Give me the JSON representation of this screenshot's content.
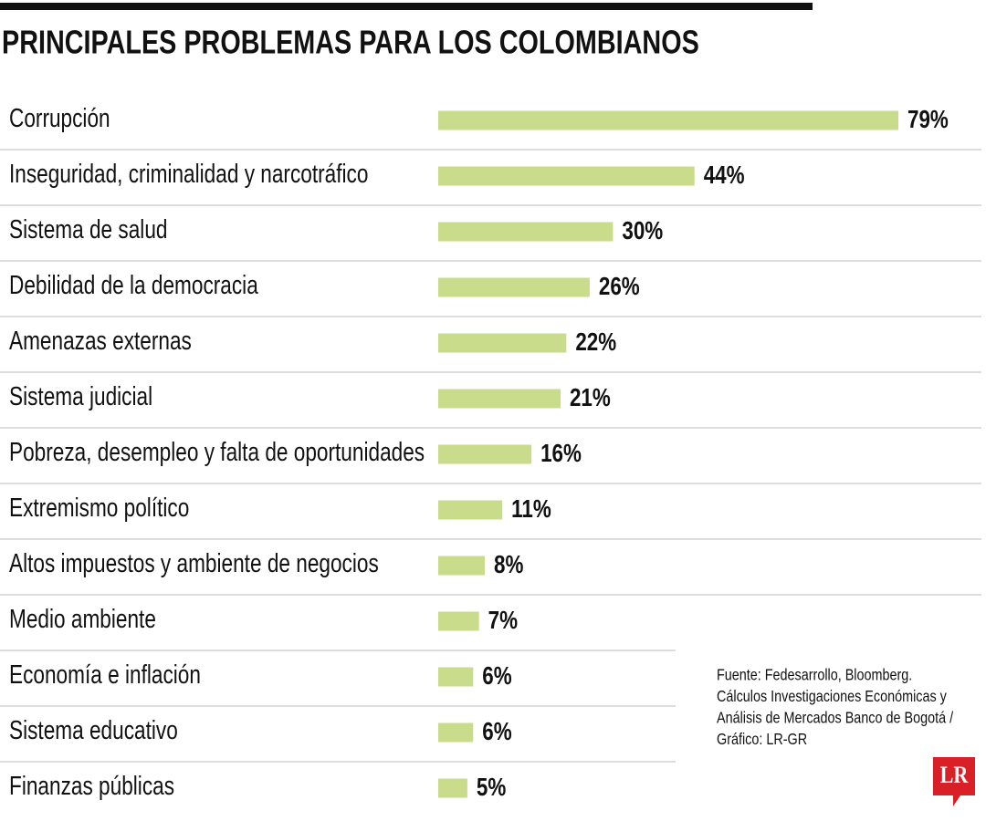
{
  "chart_data": {
    "type": "bar",
    "orientation": "horizontal",
    "title": "PRINCIPALES PROBLEMAS PARA LOS COLOMBIANOS",
    "categories": [
      "Corrupción",
      "Inseguridad, criminalidad y narcotráfico",
      "Sistema de salud",
      "Debilidad de la democracia",
      "Amenazas externas",
      "Sistema judicial",
      "Pobreza, desempleo y falta de oportunidades",
      "Extremismo político",
      "Altos impuestos y ambiente de negocios",
      "Medio ambiente",
      "Economía e inflación",
      "Sistema educativo",
      "Finanzas públicas"
    ],
    "values": [
      79,
      44,
      30,
      26,
      22,
      21,
      16,
      11,
      8,
      7,
      6,
      6,
      5
    ],
    "value_labels": [
      "79%",
      "44%",
      "30%",
      "26%",
      "22%",
      "21%",
      "16%",
      "11%",
      "8%",
      "7%",
      "6%",
      "6%",
      "5%"
    ],
    "color": "#c8dc8c",
    "source_lines": [
      "Fuente: Fedesarrollo, Bloomberg.",
      "Cálculos Investigaciones Económicas y",
      "Análisis de Mercados Banco de Bogotá /",
      "Gráfico: LR-GR"
    ],
    "logo": "LR"
  }
}
